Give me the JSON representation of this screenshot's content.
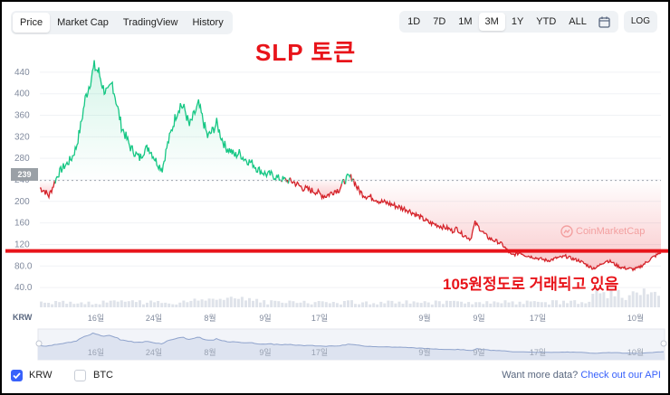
{
  "tabs": [
    {
      "label": "Price",
      "active": true
    },
    {
      "label": "Market Cap",
      "active": false
    },
    {
      "label": "TradingView",
      "active": false
    },
    {
      "label": "History",
      "active": false
    }
  ],
  "ranges": [
    {
      "label": "1D",
      "active": false
    },
    {
      "label": "7D",
      "active": false
    },
    {
      "label": "1M",
      "active": false
    },
    {
      "label": "3M",
      "active": true
    },
    {
      "label": "1Y",
      "active": false
    },
    {
      "label": "YTD",
      "active": false
    },
    {
      "label": "ALL",
      "active": false
    }
  ],
  "calendar_icon": "calendar-icon",
  "log_label": "LOG",
  "overlay_title": "SLP 토큰",
  "annotation": "105원정도로 거래되고 있음",
  "watermark": "CoinMarketCap",
  "current_price_label": "239",
  "currency_label": "KRW",
  "chart_data": {
    "type": "line",
    "currency": "KRW",
    "y_ticks": [
      "440",
      "400",
      "360",
      "320",
      "280",
      "240",
      "200",
      "160",
      "120",
      "80.0",
      "40.0"
    ],
    "x_ticks": [
      "16일",
      "24일",
      "8월",
      "9일",
      "17일",
      "9월",
      "9일",
      "17일",
      "10월"
    ],
    "mini_x_ticks": [
      "16일",
      "24일",
      "8월",
      "9일",
      "17일",
      "9월",
      "9일",
      "17일",
      "10월"
    ],
    "ylim": [
      20,
      470
    ],
    "reference_value": 239,
    "reference_line": 108,
    "colors": {
      "up": "#16c784",
      "down": "#d5232a",
      "reference_line": "#e8141a"
    },
    "prices": [
      225,
      220,
      210,
      230,
      250,
      262,
      270,
      280,
      300,
      340,
      390,
      420,
      450,
      440,
      410,
      400,
      420,
      380,
      340,
      320,
      300,
      290,
      280,
      295,
      300,
      285,
      270,
      260,
      300,
      330,
      360,
      380,
      370,
      340,
      360,
      380,
      350,
      320,
      330,
      345,
      320,
      300,
      295,
      285,
      290,
      280,
      275,
      270,
      260,
      255,
      250,
      250,
      245,
      242,
      240,
      238,
      236,
      230,
      225,
      222,
      220,
      218,
      212,
      210,
      214,
      220,
      222,
      236,
      245,
      244,
      225,
      215,
      210,
      208,
      205,
      200,
      198,
      196,
      193,
      190,
      187,
      185,
      180,
      175,
      170,
      165,
      160,
      158,
      155,
      152,
      150,
      145,
      150,
      140,
      135,
      130,
      160,
      150,
      140,
      132,
      128,
      125,
      120,
      110,
      100,
      102,
      105,
      100,
      98,
      96,
      94,
      92,
      90,
      92,
      95,
      96,
      98,
      95,
      92,
      90,
      85,
      80,
      76,
      78,
      85,
      90,
      88,
      82,
      78,
      76,
      75,
      74,
      76,
      82,
      88,
      95,
      100,
      105
    ]
  },
  "footer": {
    "checkbox_krw": "KRW",
    "checkbox_btc": "BTC",
    "more_text": "Want more data?",
    "more_link": "Check out our API"
  }
}
